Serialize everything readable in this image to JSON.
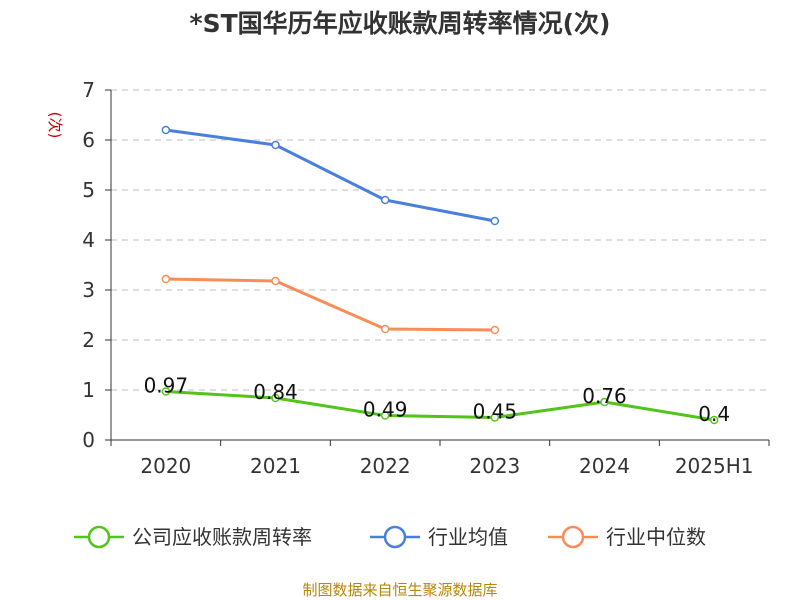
{
  "chart_data": {
    "type": "line",
    "title": "*ST国华历年应收账款周转率情况(次)",
    "ylabel": "(次)",
    "xlabel": "",
    "categories": [
      "2020",
      "2021",
      "2022",
      "2023",
      "2024",
      "2025H1"
    ],
    "ylim": [
      0,
      7
    ],
    "yticks": [
      0,
      1,
      2,
      3,
      4,
      5,
      6,
      7
    ],
    "grid": true,
    "legend_position": "bottom",
    "series": [
      {
        "name": "公司应收账款周转率",
        "color": "#52c41a",
        "values": [
          0.97,
          0.84,
          0.49,
          0.45,
          0.76,
          0.4
        ],
        "labels": [
          "0.97",
          "0.84",
          "0.49",
          "0.45",
          "0.76",
          "0.4"
        ]
      },
      {
        "name": "行业均值",
        "color": "#4a7fdc",
        "values": [
          6.2,
          5.9,
          4.8,
          4.38,
          null,
          null
        ]
      },
      {
        "name": "行业中位数",
        "color": "#f88d5a",
        "values": [
          3.22,
          3.18,
          2.22,
          2.2,
          null,
          null
        ]
      }
    ]
  },
  "source": "制图数据来自恒生聚源数据库"
}
